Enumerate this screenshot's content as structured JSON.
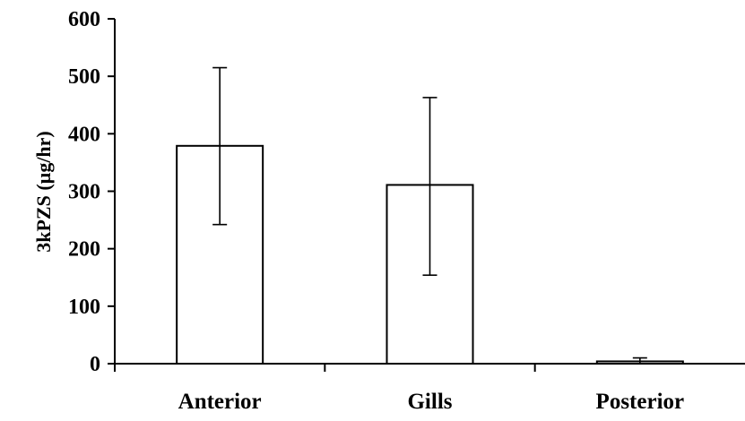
{
  "chart_data": {
    "type": "bar",
    "categories": [
      "Anterior",
      "Gills",
      "Posterior"
    ],
    "values": [
      379,
      311,
      4
    ],
    "error_low": [
      242,
      154,
      0
    ],
    "error_high": [
      515,
      463,
      10
    ],
    "ylabel": "3kPZS (µg/hr)",
    "xlabel": "",
    "ylim": [
      0,
      600
    ],
    "yticks": [
      0,
      100,
      200,
      300,
      400,
      500,
      600
    ],
    "ytick_labels": [
      "0",
      "100",
      "200",
      "300",
      "400",
      "500",
      "600"
    ],
    "grid": false,
    "bar_fill": "#ffffff",
    "bar_stroke": "#000000"
  }
}
